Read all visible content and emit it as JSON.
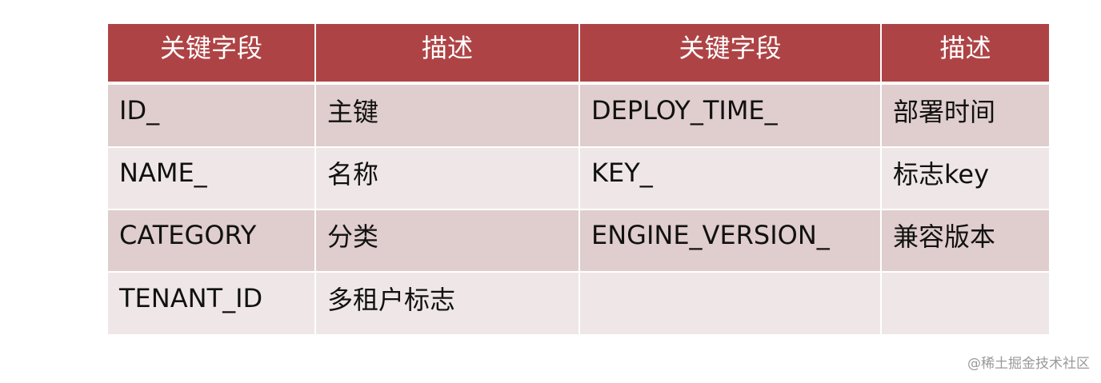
{
  "table": {
    "headers": [
      "关键字段",
      "描述",
      "关键字段",
      "描述"
    ],
    "rows": [
      [
        "ID_",
        "主键",
        "DEPLOY_TIME_",
        "部署时间"
      ],
      [
        "NAME_",
        "名称",
        "KEY_",
        "标志key"
      ],
      [
        "CATEGORY",
        "分类",
        "ENGINE_VERSION_",
        "兼容版本"
      ],
      [
        "TENANT_ID",
        "多租户标志",
        "",
        ""
      ]
    ],
    "colors": {
      "header": "#ae4345",
      "row_dark": "#dfcecd",
      "row_light": "#efe7e7"
    }
  },
  "watermark": "@稀土掘金技术社区"
}
